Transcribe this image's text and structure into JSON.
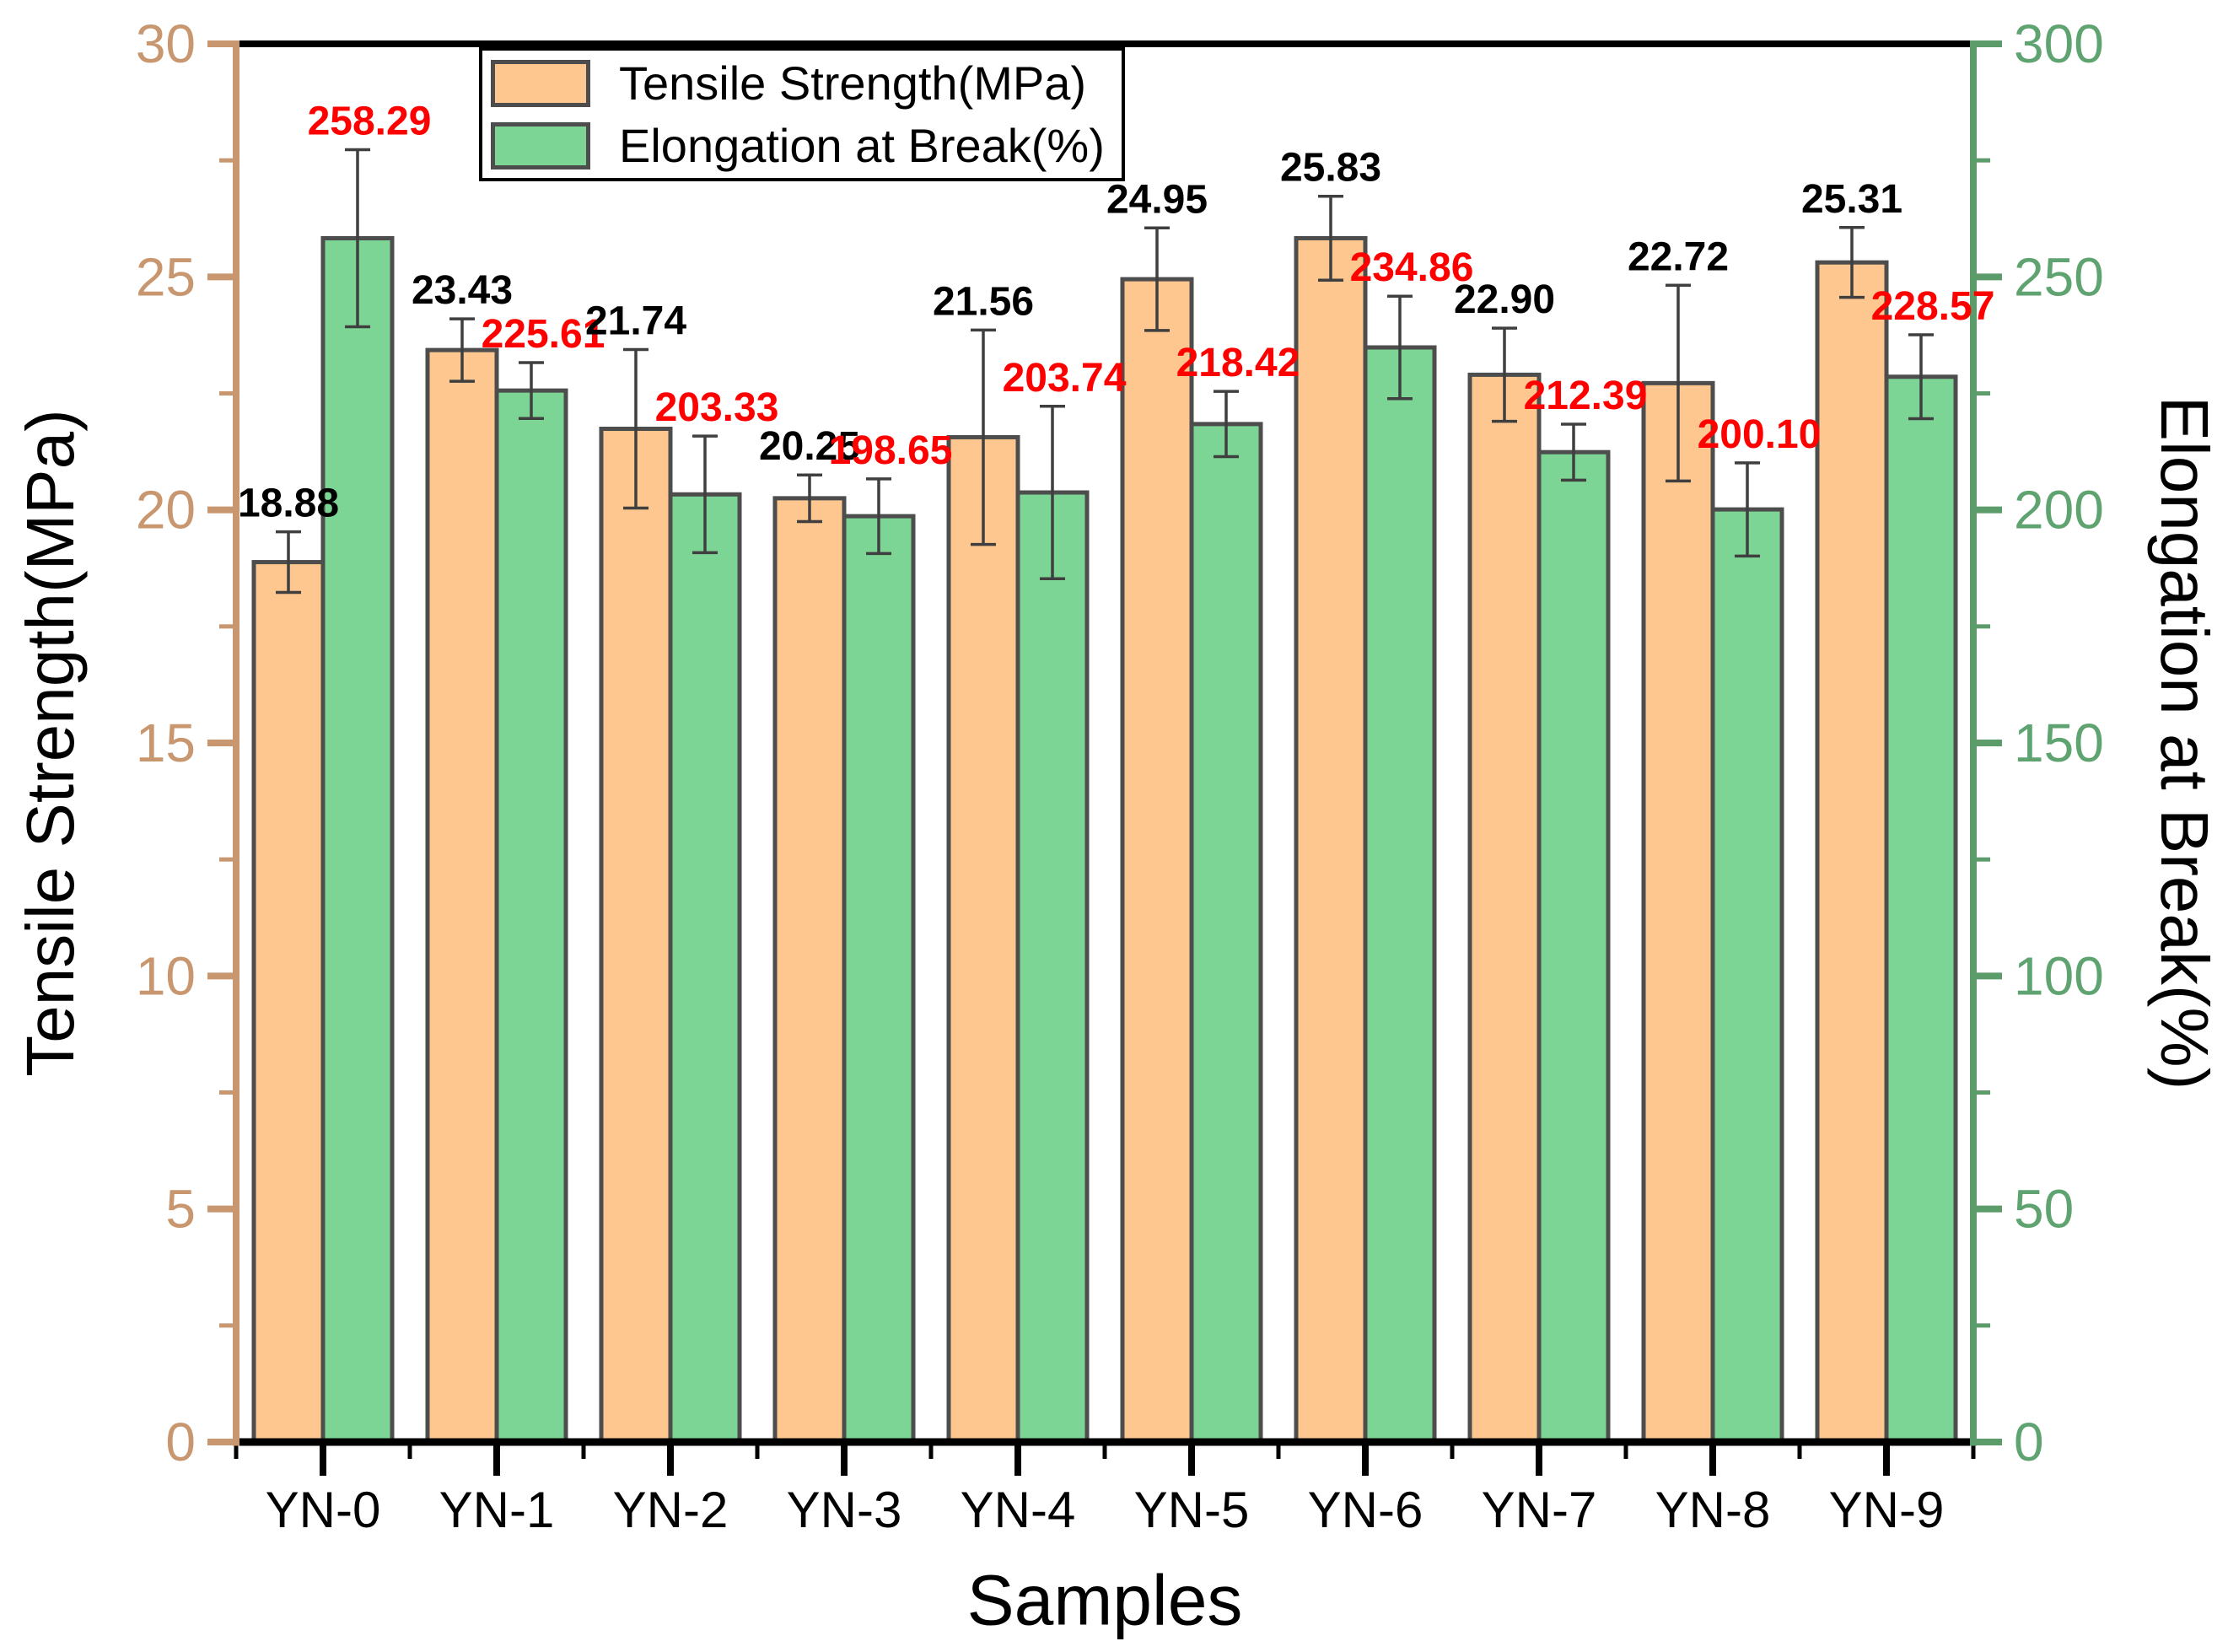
{
  "chart_data": {
    "type": "bar",
    "title": "",
    "xlabel": "Samples",
    "categories": [
      "YN-0",
      "YN-1",
      "YN-2",
      "YN-3",
      "YN-4",
      "YN-5",
      "YN-6",
      "YN-7",
      "YN-8",
      "YN-9"
    ],
    "series": [
      {
        "name": "Tensile Strength(MPa)",
        "axis": "left",
        "bar_color": "#FDC78F",
        "edge_color": "#4D4D4D",
        "label_color": "#000000",
        "values": [
          18.88,
          23.43,
          21.74,
          20.25,
          21.56,
          24.95,
          25.83,
          22.9,
          22.72,
          25.31
        ],
        "value_labels": [
          "18.88",
          "23.43",
          "21.74",
          "20.25",
          "21.56",
          "24.95",
          "25.83",
          "22.90",
          "22.72",
          "25.31"
        ],
        "errors": [
          0.65,
          0.67,
          1.7,
          0.5,
          2.3,
          1.1,
          0.9,
          1.0,
          2.1,
          0.75
        ]
      },
      {
        "name": "Elongation at Break(%)",
        "axis": "right",
        "bar_color": "#7DD595",
        "edge_color": "#4D4D4D",
        "label_color": "#FF0000",
        "values": [
          258.29,
          225.61,
          203.33,
          198.65,
          203.74,
          218.42,
          234.86,
          212.39,
          200.1,
          228.57
        ],
        "value_labels": [
          "258.29",
          "225.61",
          "203.33",
          "198.65",
          "203.74",
          "218.42",
          "234.86",
          "212.39",
          "200.10",
          "228.57"
        ],
        "errors": [
          19,
          6,
          12.5,
          8,
          18.5,
          7,
          11,
          6,
          10,
          9
        ]
      }
    ],
    "axes": {
      "left": {
        "title": "Tensile Strength(MPa)",
        "range": [
          0,
          30
        ],
        "major_step": 5,
        "minor_step": 2.5,
        "tick_labels": [
          "0",
          "5",
          "10",
          "15",
          "20",
          "25",
          "30"
        ],
        "spine_color": "#C8976F",
        "tick_label_color": "#C8976F"
      },
      "right": {
        "title": "Elongation at Break(%)",
        "range": [
          0,
          300
        ],
        "major_step": 50,
        "minor_step": 25,
        "tick_labels": [
          "0",
          "50",
          "100",
          "150",
          "200",
          "250",
          "300"
        ],
        "spine_color": "#5C9C6A",
        "tick_label_color": "#5EA370"
      },
      "bottom": {
        "title": "Samples",
        "spine_color": "#000000",
        "tick_label_color": "#000000"
      },
      "top": {
        "spine_color": "#000000"
      }
    },
    "legend": {
      "position": "top-inside-left",
      "items": [
        {
          "label": "Tensile Strength(MPa)",
          "swatch_color": "#FDC78F"
        },
        {
          "label": "Elongation at Break(%)",
          "swatch_color": "#7DD595"
        }
      ]
    },
    "error_bar_color": "#3F3F3F",
    "grid": false
  }
}
